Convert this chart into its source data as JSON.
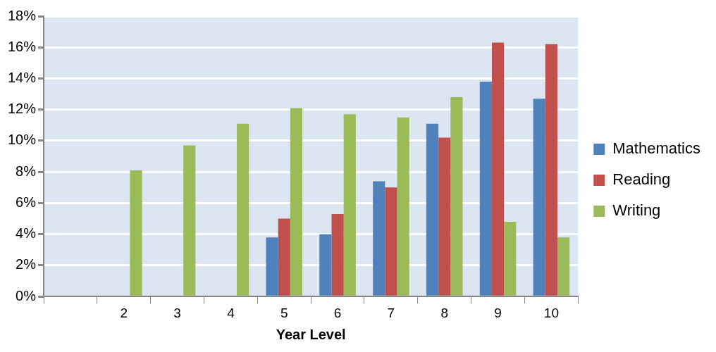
{
  "chart_data": {
    "type": "bar",
    "xlabel": "Year Level",
    "categories": [
      null,
      "2",
      "3",
      "4",
      "5",
      "6",
      "7",
      "8",
      "9",
      "10"
    ],
    "series": [
      {
        "name": "Mathematics",
        "color": "#4f81bd",
        "values": [
          null,
          null,
          null,
          null,
          3.8,
          4.0,
          7.4,
          11.1,
          13.8,
          12.7
        ]
      },
      {
        "name": "Reading",
        "color": "#c0504d",
        "values": [
          null,
          null,
          null,
          null,
          5.0,
          5.3,
          7.0,
          10.2,
          16.3,
          16.2
        ]
      },
      {
        "name": "Writing",
        "color": "#9bbb59",
        "values": [
          null,
          8.1,
          9.7,
          11.1,
          12.1,
          11.7,
          11.5,
          12.8,
          4.8,
          3.8
        ]
      }
    ],
    "ylim": [
      0,
      18
    ],
    "yticks": [
      {
        "value": 0,
        "label": "0%"
      },
      {
        "value": 2,
        "label": "2%"
      },
      {
        "value": 4,
        "label": "4%"
      },
      {
        "value": 6,
        "label": "6%"
      },
      {
        "value": 8,
        "label": "8%"
      },
      {
        "value": 10,
        "label": "10%"
      },
      {
        "value": 12,
        "label": "12%"
      },
      {
        "value": 14,
        "label": "14%"
      },
      {
        "value": 16,
        "label": "16%"
      },
      {
        "value": 18,
        "label": "18%"
      }
    ],
    "grid": "y",
    "legend": "right"
  }
}
